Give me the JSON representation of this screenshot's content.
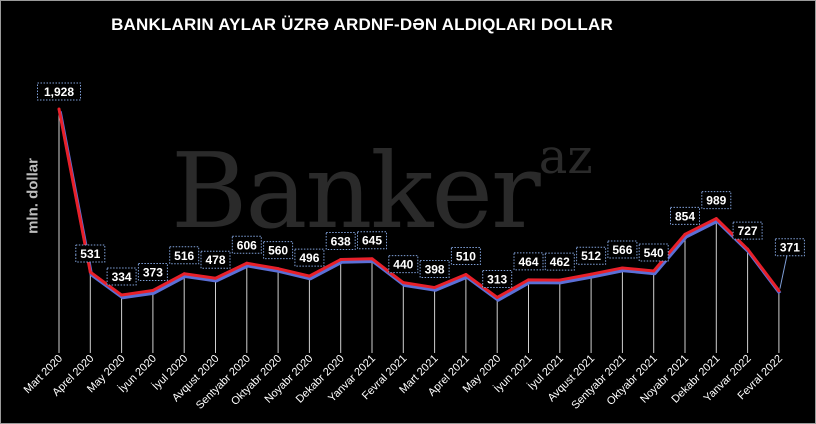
{
  "watermark": {
    "main": "Banker",
    "sup": "az"
  },
  "chart_data": {
    "type": "line",
    "title": "BANKLARIN AYLAR ÜZRƏ ARDNF-DƏN ALDIQLARI DOLLAR",
    "xlabel": "",
    "ylabel": "mln. dollar",
    "categories": [
      "Mart 2020",
      "Aprel 2020",
      "May 2020",
      "İyun 2020",
      "İyul 2020",
      "Avqust 2020",
      "Sentyabr 2020",
      "Oktyabr 2020",
      "Noyabr 2020",
      "Dekabr 2020",
      "Yanvar 2021",
      "Fevral 2021",
      "Mart 2021",
      "Aprel 2021",
      "May 2020",
      "İyun 2021",
      "İyul 2021",
      "Avqust 2021",
      "Sentyabr 2021",
      "Oktyabr 2021",
      "Noyabr 2021",
      "Dekabr 2021",
      "Yanvar 2022",
      "Fevral 2022"
    ],
    "values": [
      1928,
      531,
      334,
      373,
      516,
      478,
      606,
      560,
      496,
      638,
      645,
      440,
      398,
      510,
      313,
      464,
      462,
      512,
      566,
      540,
      854,
      989,
      727,
      371
    ],
    "data_labels": [
      "1,928",
      "531",
      "334",
      "373",
      "516",
      "478",
      "606",
      "560",
      "496",
      "638",
      "645",
      "440",
      "398",
      "510",
      "313",
      "464",
      "462",
      "512",
      "566",
      "540",
      "854",
      "989",
      "727",
      "371"
    ],
    "ylim": [
      0,
      2000
    ],
    "grid": false,
    "legend": "none",
    "colors": {
      "line": "#e8202a",
      "shadow": "#5b6fd6",
      "drop_lines": "#d0d0d0",
      "label_border": "#7f9fd8"
    }
  }
}
